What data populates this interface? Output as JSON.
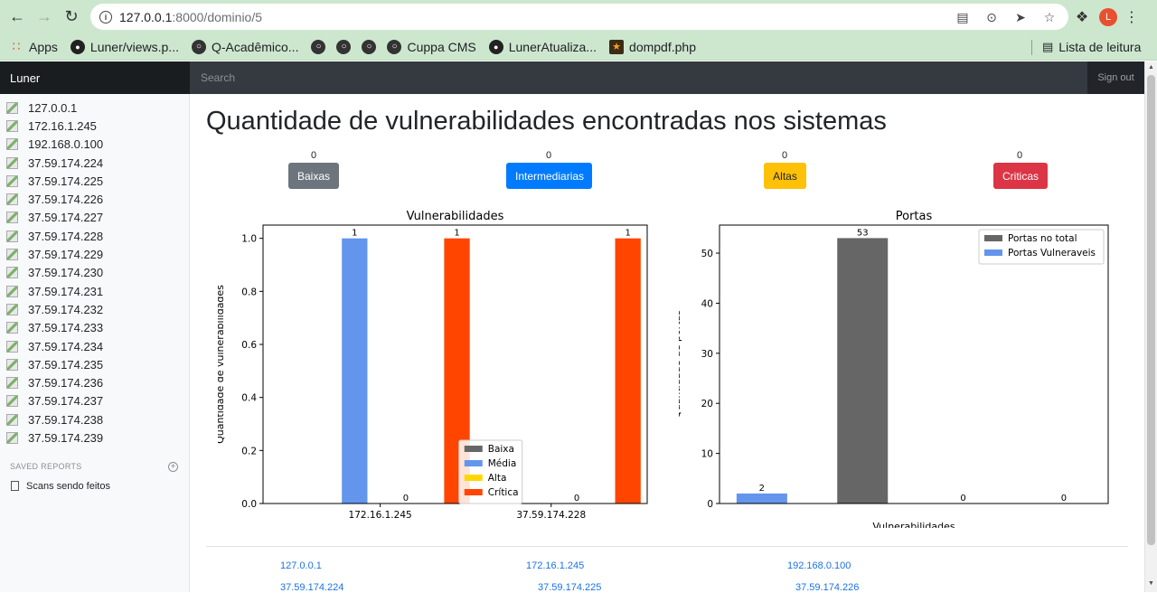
{
  "browser": {
    "url_host": "127.0.0.1",
    "url_path": ":8000/dominio/5",
    "profile_initial": "L",
    "bookmarks": [
      {
        "label": "Apps",
        "icon": "apps-icon"
      },
      {
        "label": "Luner/views.p...",
        "icon": "github-icon"
      },
      {
        "label": "Q-Acadêmico...",
        "icon": "globe-icon"
      },
      {
        "label": "",
        "icon": "globe-icon"
      },
      {
        "label": "",
        "icon": "globe-icon"
      },
      {
        "label": "",
        "icon": "globe-icon"
      },
      {
        "label": "Cuppa CMS",
        "icon": "globe-icon"
      },
      {
        "label": "LunerAtualiza...",
        "icon": "github-icon"
      },
      {
        "label": "dompdf.php",
        "icon": "star-icon"
      }
    ],
    "reading_list": "Lista de leitura"
  },
  "navbar": {
    "brand": "Luner",
    "search_placeholder": "Search",
    "signout": "Sign out"
  },
  "sidebar": {
    "hosts": [
      "127.0.0.1",
      "172.16.1.245",
      "192.168.0.100",
      "37.59.174.224",
      "37.59.174.225",
      "37.59.174.226",
      "37.59.174.227",
      "37.59.174.228",
      "37.59.174.229",
      "37.59.174.230",
      "37.59.174.231",
      "37.59.174.232",
      "37.59.174.233",
      "37.59.174.234",
      "37.59.174.235",
      "37.59.174.236",
      "37.59.174.237",
      "37.59.174.238",
      "37.59.174.239"
    ],
    "saved_reports_title": "SAVED REPORTS",
    "reports": [
      "Scans sendo feitos"
    ]
  },
  "main": {
    "title": "Quantidade de vulnerabilidades encontradas nos sistemas",
    "severity": [
      {
        "count": "0",
        "label": "Baixas",
        "color": "#6c757d"
      },
      {
        "count": "0",
        "label": "Intermediarias",
        "color": "#007bff"
      },
      {
        "count": "0",
        "label": "Altas",
        "color": "#ffc107"
      },
      {
        "count": "0",
        "label": "Criticas",
        "color": "#dc3545"
      }
    ],
    "links": [
      "127.0.0.1",
      "172.16.1.245",
      "192.168.0.100",
      "37.59.174.224",
      "37.59.174.225",
      "37.59.174.226"
    ]
  },
  "chart_data": [
    {
      "type": "bar",
      "title": "Vulnerabilidades",
      "xlabel": "",
      "ylabel": "Quantidade de vulnerabilidades",
      "categories": [
        "172.16.1.245",
        "37.59.174.228"
      ],
      "ylim": [
        0,
        1.05
      ],
      "yticks": [
        "0.0",
        "0.2",
        "0.4",
        "0.6",
        "0.8",
        "1.0"
      ],
      "series": [
        {
          "name": "Baixa",
          "color": "#666666",
          "values": [
            0,
            0
          ]
        },
        {
          "name": "Média",
          "color": "#6495ed",
          "values": [
            1,
            0
          ]
        },
        {
          "name": "Alta",
          "color": "#ffd700",
          "values": [
            0,
            0
          ]
        },
        {
          "name": "Crítica",
          "color": "#ff4500",
          "values": [
            1,
            1
          ]
        }
      ],
      "legend": "lower-right",
      "grid": false
    },
    {
      "type": "bar",
      "title": "Portas",
      "xlabel": "Vulnerabilidades",
      "ylabel": "Quantidade de portas",
      "ylim": [
        0,
        55.6
      ],
      "yticks": [
        "0",
        "10",
        "20",
        "30",
        "40",
        "50"
      ],
      "series": [
        {
          "name": "Portas no total",
          "color": "#666666"
        },
        {
          "name": "Portas Vulneraveis",
          "color": "#6495ed"
        }
      ],
      "bars": [
        {
          "series": "Portas Vulneraveis",
          "value": 2
        },
        {
          "series": "Portas no total",
          "value": 53
        },
        {
          "series": "Portas Vulneraveis",
          "value": 0
        },
        {
          "series": "Portas no total",
          "value": 0
        }
      ],
      "legend": "upper-right",
      "grid": false
    }
  ]
}
